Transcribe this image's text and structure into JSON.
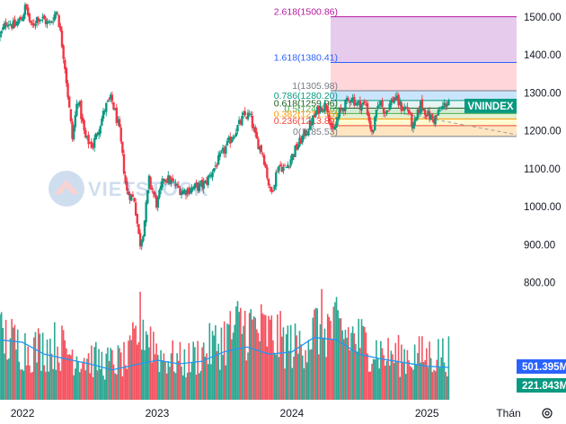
{
  "chart_data": {
    "type": "candlestick",
    "instrument": "VNINDEX",
    "price_axis": {
      "ticks": [
        "1500.00",
        "1400.00",
        "1300.00",
        "1200.00",
        "1100.00",
        "1000.00",
        "900.00",
        "800.00"
      ],
      "range": [
        740,
        1545
      ]
    },
    "time_axis": {
      "labels": [
        "2022",
        "2023",
        "2024",
        "2025",
        "Thán"
      ],
      "range": [
        "2021-11-01",
        "2025-09-01"
      ]
    },
    "fibonacci": {
      "levels": [
        {
          "label": "2.618(1500.86)",
          "value": 1500.86,
          "color": "#b5179e"
        },
        {
          "label": "1.618(1380.41)",
          "value": 1380.41,
          "color": "#2962ff"
        },
        {
          "label": "1(1305.98)",
          "value": 1305.98,
          "color": "#787b86"
        },
        {
          "label": "0.786(1280.20)",
          "value": 1280.2,
          "color": "#089981"
        },
        {
          "label": "0.618(1259.96)",
          "value": 1259.96,
          "color": "#1b5e20"
        },
        {
          "label": "0.5(1245.76)",
          "value": 1245.76,
          "color": "#4caf50"
        },
        {
          "label": "0.382(1231.55)",
          "value": 1231.55,
          "color": "#ff9800"
        },
        {
          "label": "0.236(1213.89)",
          "value": 1213.89,
          "color": "#f44336"
        },
        {
          "label": "0(1185.53)",
          "value": 1185.53,
          "color": "#787b86"
        }
      ],
      "zone_fills": [
        "#e1bee7",
        "#ffcdd2",
        "#bbdefb",
        "#e0f2f1",
        "#c8e6c9",
        "#dcedc8",
        "#fff9c4",
        "#ffe0b2",
        "#ffcdd2"
      ],
      "start": "2024-04-15"
    },
    "trend_line": {
      "from": {
        "x": "2024-11-01",
        "y": 1245
      },
      "to": {
        "x": "2025-09-01",
        "y": 1190
      },
      "color": "#9e9e9e"
    },
    "price_path": [
      {
        "x": "2021-11-01",
        "y": 1450
      },
      {
        "x": "2021-11-20",
        "y": 1490
      },
      {
        "x": "2021-12-10",
        "y": 1475
      },
      {
        "x": "2021-12-31",
        "y": 1500
      },
      {
        "x": "2022-01-10",
        "y": 1530
      },
      {
        "x": "2022-01-25",
        "y": 1470
      },
      {
        "x": "2022-02-10",
        "y": 1500
      },
      {
        "x": "2022-02-25",
        "y": 1495
      },
      {
        "x": "2022-03-15",
        "y": 1480
      },
      {
        "x": "2022-04-05",
        "y": 1520
      },
      {
        "x": "2022-04-25",
        "y": 1380
      },
      {
        "x": "2022-05-16",
        "y": 1180
      },
      {
        "x": "2022-05-31",
        "y": 1290
      },
      {
        "x": "2022-06-20",
        "y": 1180
      },
      {
        "x": "2022-07-10",
        "y": 1160
      },
      {
        "x": "2022-08-15",
        "y": 1265
      },
      {
        "x": "2022-08-30",
        "y": 1285
      },
      {
        "x": "2022-09-20",
        "y": 1205
      },
      {
        "x": "2022-10-10",
        "y": 1040
      },
      {
        "x": "2022-10-31",
        "y": 1020
      },
      {
        "x": "2022-11-15",
        "y": 900
      },
      {
        "x": "2022-11-25",
        "y": 940
      },
      {
        "x": "2022-12-10",
        "y": 1070
      },
      {
        "x": "2022-12-31",
        "y": 1005
      },
      {
        "x": "2023-01-20",
        "y": 1080
      },
      {
        "x": "2023-02-15",
        "y": 1060
      },
      {
        "x": "2023-03-10",
        "y": 1040
      },
      {
        "x": "2023-04-10",
        "y": 1050
      },
      {
        "x": "2023-05-10",
        "y": 1060
      },
      {
        "x": "2023-06-15",
        "y": 1120
      },
      {
        "x": "2023-07-20",
        "y": 1180
      },
      {
        "x": "2023-08-25",
        "y": 1240
      },
      {
        "x": "2023-09-10",
        "y": 1240
      },
      {
        "x": "2023-09-25",
        "y": 1180
      },
      {
        "x": "2023-10-15",
        "y": 1140
      },
      {
        "x": "2023-11-05",
        "y": 1030
      },
      {
        "x": "2023-11-25",
        "y": 1110
      },
      {
        "x": "2023-12-15",
        "y": 1100
      },
      {
        "x": "2024-01-10",
        "y": 1150
      },
      {
        "x": "2024-02-10",
        "y": 1200
      },
      {
        "x": "2024-03-15",
        "y": 1260
      },
      {
        "x": "2024-04-05",
        "y": 1270
      },
      {
        "x": "2024-04-20",
        "y": 1190
      },
      {
        "x": "2024-05-10",
        "y": 1250
      },
      {
        "x": "2024-06-10",
        "y": 1290
      },
      {
        "x": "2024-06-25",
        "y": 1270
      },
      {
        "x": "2024-07-20",
        "y": 1270
      },
      {
        "x": "2024-08-05",
        "y": 1190
      },
      {
        "x": "2024-08-25",
        "y": 1280
      },
      {
        "x": "2024-09-10",
        "y": 1250
      },
      {
        "x": "2024-10-05",
        "y": 1290
      },
      {
        "x": "2024-10-25",
        "y": 1260
      },
      {
        "x": "2024-11-10",
        "y": 1260
      },
      {
        "x": "2024-11-25",
        "y": 1205
      },
      {
        "x": "2024-12-15",
        "y": 1270
      },
      {
        "x": "2025-01-05",
        "y": 1240
      },
      {
        "x": "2025-01-20",
        "y": 1230
      },
      {
        "x": "2025-02-10",
        "y": 1260
      },
      {
        "x": "2025-03-01",
        "y": 1280
      }
    ],
    "volume_axis": {
      "range": [
        0,
        900
      ]
    },
    "volume_path": [
      {
        "x": "2021-11-01",
        "y": 600
      },
      {
        "x": "2022-01-20",
        "y": 480
      },
      {
        "x": "2022-04-05",
        "y": 520
      },
      {
        "x": "2022-06-01",
        "y": 420
      },
      {
        "x": "2022-08-15",
        "y": 350
      },
      {
        "x": "2022-10-15",
        "y": 380
      },
      {
        "x": "2022-11-20",
        "y": 760
      },
      {
        "x": "2023-01-10",
        "y": 420
      },
      {
        "x": "2023-03-20",
        "y": 360
      },
      {
        "x": "2023-06-15",
        "y": 540
      },
      {
        "x": "2023-08-20",
        "y": 720
      },
      {
        "x": "2023-10-20",
        "y": 640
      },
      {
        "x": "2024-01-15",
        "y": 500
      },
      {
        "x": "2024-03-20",
        "y": 720
      },
      {
        "x": "2024-06-15",
        "y": 600
      },
      {
        "x": "2024-09-15",
        "y": 420
      },
      {
        "x": "2024-12-10",
        "y": 420
      },
      {
        "x": "2025-02-25",
        "y": 430
      }
    ],
    "volume_ma": [
      {
        "x": "2021-11-01",
        "y": 500
      },
      {
        "x": "2022-01-01",
        "y": 480
      },
      {
        "x": "2022-03-01",
        "y": 380
      },
      {
        "x": "2022-05-01",
        "y": 340
      },
      {
        "x": "2022-07-01",
        "y": 300
      },
      {
        "x": "2022-09-01",
        "y": 250
      },
      {
        "x": "2022-11-01",
        "y": 290
      },
      {
        "x": "2023-01-01",
        "y": 330
      },
      {
        "x": "2023-03-01",
        "y": 300
      },
      {
        "x": "2023-05-01",
        "y": 320
      },
      {
        "x": "2023-07-01",
        "y": 400
      },
      {
        "x": "2023-09-01",
        "y": 440
      },
      {
        "x": "2023-11-01",
        "y": 380
      },
      {
        "x": "2024-01-01",
        "y": 400
      },
      {
        "x": "2024-03-01",
        "y": 520
      },
      {
        "x": "2024-05-01",
        "y": 500
      },
      {
        "x": "2024-07-01",
        "y": 380
      },
      {
        "x": "2024-09-01",
        "y": 340
      },
      {
        "x": "2024-11-01",
        "y": 310
      },
      {
        "x": "2025-01-01",
        "y": 280
      },
      {
        "x": "2025-03-01",
        "y": 270
      }
    ],
    "last_price_label": "VNINDEX",
    "volume_labels": [
      {
        "text": "501.395M",
        "color": "#2962ff"
      },
      {
        "text": "221.843M",
        "color": "#089981"
      }
    ],
    "colors": {
      "up": "#089981",
      "down": "#f23645",
      "volume_ma": "#2196f3",
      "axis_text": "#131722",
      "label_green": "#089981"
    },
    "watermark": "VIETSTOCK",
    "settings_icon": "gear-icon"
  }
}
